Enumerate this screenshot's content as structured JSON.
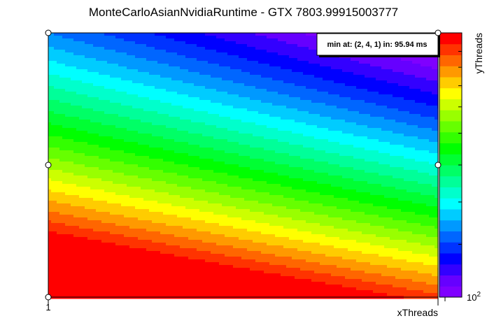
{
  "chart_data": {
    "type": "heatmap",
    "title": "MonteCarloAsianNvidiaRuntime - GTX 7803.99915003777",
    "xlabel": "xThreads",
    "ylabel": "yThreads",
    "x_tick_labels": [
      "1"
    ],
    "z_tick_labels": [
      {
        "base": "10",
        "exp": "2"
      }
    ],
    "color_scale": "rainbow",
    "z_scale": "log",
    "legend": "colorbar-right",
    "annotation": "min at: (2, 4, 1) in: 95.94 ms",
    "palette": [
      "#7f00ff",
      "#6600ff",
      "#3300ff",
      "#0000ff",
      "#0033ff",
      "#0066ff",
      "#0099ff",
      "#00ccff",
      "#00ffff",
      "#00ffcc",
      "#00ff99",
      "#00ff66",
      "#00ff33",
      "#00ff00",
      "#33ff00",
      "#66ff00",
      "#99ff00",
      "#ccff00",
      "#ffff00",
      "#ffcc00",
      "#ff9900",
      "#ff6600",
      "#ff3300",
      "#ff0000"
    ]
  }
}
